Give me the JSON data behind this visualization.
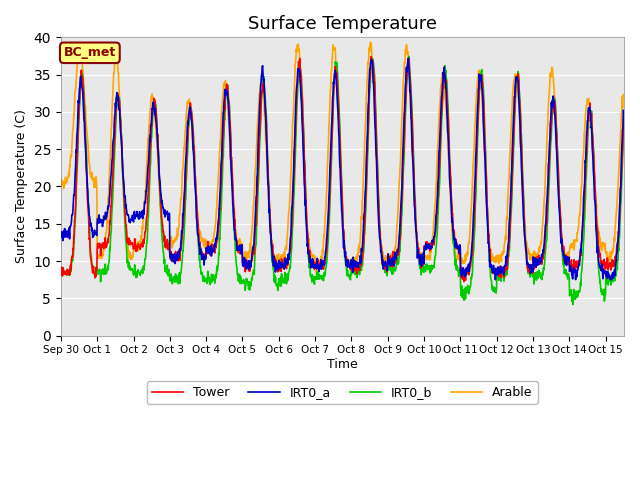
{
  "title": "Surface Temperature",
  "xlabel": "Time",
  "ylabel": "Surface Temperature (C)",
  "ylim": [
    0,
    40
  ],
  "yticks": [
    0,
    5,
    10,
    15,
    20,
    25,
    30,
    35,
    40
  ],
  "background_color": "#e8e8e8",
  "fig_background": "#ffffff",
  "legend_label": "BC_met",
  "legend_bg": "#ffff80",
  "legend_border": "#8b0000",
  "line_colors": {
    "Tower": "#ff0000",
    "IRT0_a": "#0000cc",
    "IRT0_b": "#00cc00",
    "Arable": "#ffa500"
  },
  "line_width": 1.2,
  "x_tick_labels": [
    "Sep 30",
    "Oct 1",
    "Oct 2",
    "Oct 3",
    "Oct 4",
    "Oct 5",
    "Oct 6",
    "Oct 7",
    "Oct 8",
    "Oct 9",
    "Oct 10",
    "Oct 11",
    "Oct 12",
    "Oct 13",
    "Oct 14",
    "Oct 15"
  ],
  "num_days": 15.5,
  "points_per_day": 96
}
